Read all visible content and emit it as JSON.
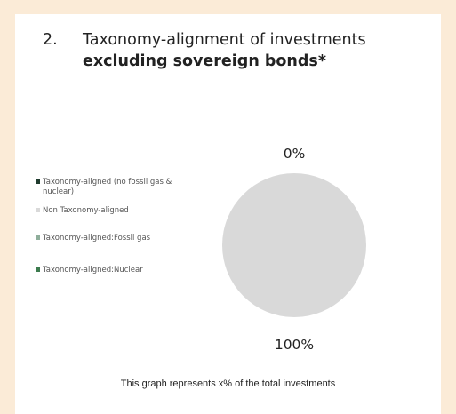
{
  "heading": {
    "number": "2.",
    "title_line1": "Taxonomy-alignment of investments",
    "title_line2": "excluding sovereign bonds*"
  },
  "footnote": "This graph represents x% of the total investments",
  "colors": {
    "page_background": "#fbebd7",
    "card_background": "#ffffff",
    "taxonomy_aligned_no_gas_nuclear": "#1f3b2e",
    "non_taxonomy_aligned": "#d9d9d9",
    "taxonomy_aligned_fossil_gas": "#8fae9b",
    "taxonomy_aligned_nuclear": "#3c7b4e"
  },
  "chart_data": {
    "type": "pie",
    "title": "",
    "legend_position": "left",
    "slices": [
      {
        "label": "Taxonomy-aligned (no fossil gas & nuclear)",
        "value": 0,
        "color": "#1f3b2e"
      },
      {
        "label": "Non Taxonomy-aligned",
        "value": 100,
        "color": "#d9d9d9"
      },
      {
        "label": "Taxonomy-aligned:Fossil gas",
        "value": 0,
        "color": "#8fae9b"
      },
      {
        "label": "Taxonomy-aligned:Nuclear",
        "value": 0,
        "color": "#3c7b4e"
      }
    ],
    "data_labels": [
      "0%",
      "100%"
    ]
  }
}
